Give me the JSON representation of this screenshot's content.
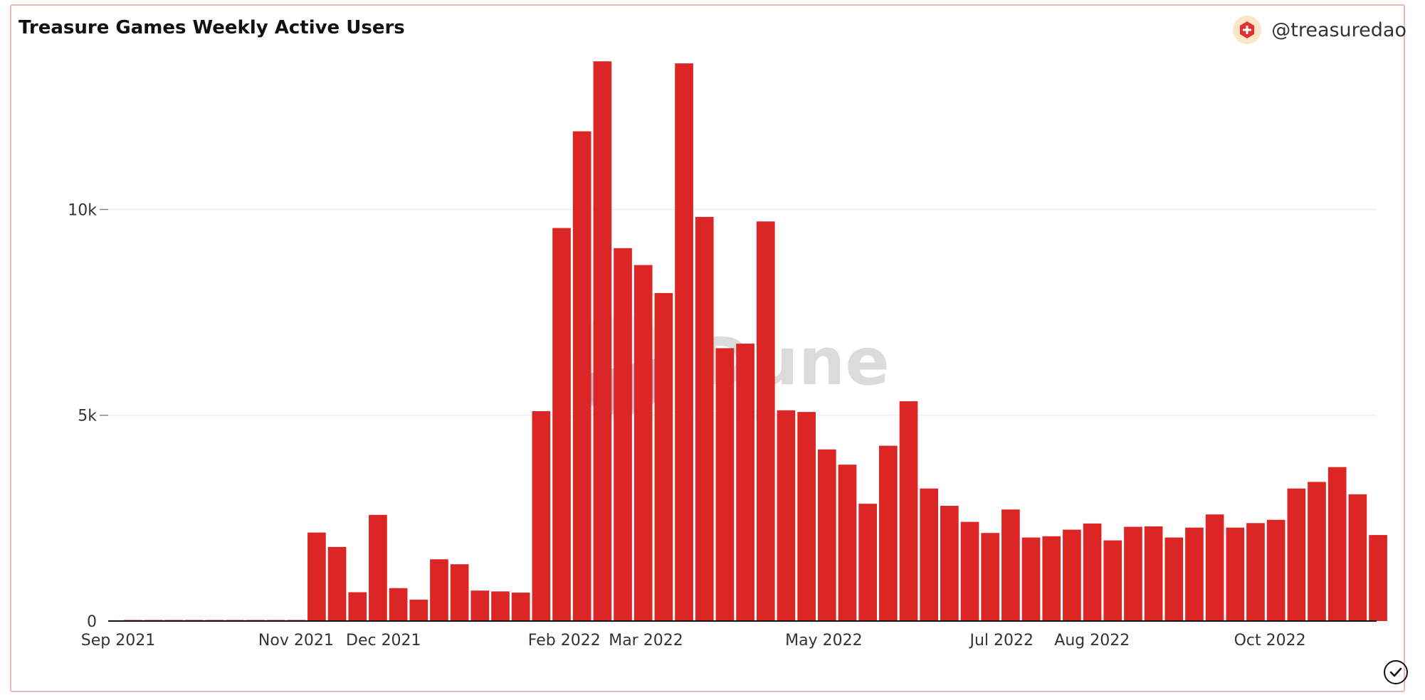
{
  "header": {
    "title": "Treasure Games Weekly Active Users",
    "handle": "@treasuredao",
    "brand_icon": "treasure-logo-icon"
  },
  "watermark": "Dune",
  "colors": {
    "bar": "#dc2626",
    "grid": "#ececec",
    "axis": "#111111",
    "brand": "#e03030"
  },
  "chart_data": {
    "type": "bar",
    "title": "Treasure Games Weekly Active Users",
    "xlabel": "",
    "ylabel": "",
    "ylim": [
      0,
      13500
    ],
    "yticks": [
      0,
      5000,
      10000
    ],
    "ytick_labels": [
      "0",
      "5k",
      "10k"
    ],
    "xticks": [
      "2021-09-01",
      "2021-11-01",
      "2021-12-01",
      "2022-02-01",
      "2022-03-01",
      "2022-05-01",
      "2022-07-01",
      "2022-08-01",
      "2022-10-01"
    ],
    "xtick_labels": [
      "Sep 2021",
      "Nov 2021",
      "Dec 2021",
      "Feb 2022",
      "Mar 2022",
      "May 2022",
      "Jul 2022",
      "Aug 2022",
      "Oct 2022"
    ],
    "grid": true,
    "legend": false,
    "series": [
      {
        "x": [
          "2021-09-06",
          "2021-09-13",
          "2021-09-20",
          "2021-09-27",
          "2021-10-04",
          "2021-10-11",
          "2021-10-18",
          "2021-10-25",
          "2021-11-01",
          "2021-11-08",
          "2021-11-15",
          "2021-11-22",
          "2021-11-29",
          "2021-12-06",
          "2021-12-13",
          "2021-12-20",
          "2021-12-27",
          "2022-01-03",
          "2022-01-10",
          "2022-01-17",
          "2022-01-24",
          "2022-01-31",
          "2022-02-07",
          "2022-02-14",
          "2022-02-21",
          "2022-02-28",
          "2022-03-07",
          "2022-03-14",
          "2022-03-21",
          "2022-03-28",
          "2022-04-04",
          "2022-04-11",
          "2022-04-18",
          "2022-04-25",
          "2022-05-02",
          "2022-05-09",
          "2022-05-16",
          "2022-05-23",
          "2022-05-30",
          "2022-06-06",
          "2022-06-13",
          "2022-06-20",
          "2022-06-27",
          "2022-07-04",
          "2022-07-11",
          "2022-07-18",
          "2022-07-25",
          "2022-08-01",
          "2022-08-08",
          "2022-08-15",
          "2022-08-22",
          "2022-08-29",
          "2022-09-05",
          "2022-09-12",
          "2022-09-19",
          "2022-09-26",
          "2022-10-03",
          "2022-10-10",
          "2022-10-17",
          "2022-10-24",
          "2022-10-31",
          "2022-11-07"
        ],
        "values": [
          20,
          20,
          20,
          20,
          20,
          20,
          20,
          20,
          20,
          2150,
          1800,
          700,
          2580,
          800,
          520,
          1500,
          1380,
          740,
          720,
          690,
          5100,
          9550,
          11900,
          13600,
          9060,
          8650,
          7970,
          13550,
          9820,
          6630,
          6740,
          9710,
          5120,
          5080,
          4170,
          3800,
          2850,
          4260,
          5340,
          3220,
          2800,
          2410,
          2140,
          2710,
          2030,
          2060,
          2220,
          2370,
          1960,
          2290,
          2300,
          2030,
          2270,
          2590,
          2270,
          2380,
          2460,
          3220,
          3380,
          3740,
          3080,
          2090
        ]
      }
    ]
  }
}
